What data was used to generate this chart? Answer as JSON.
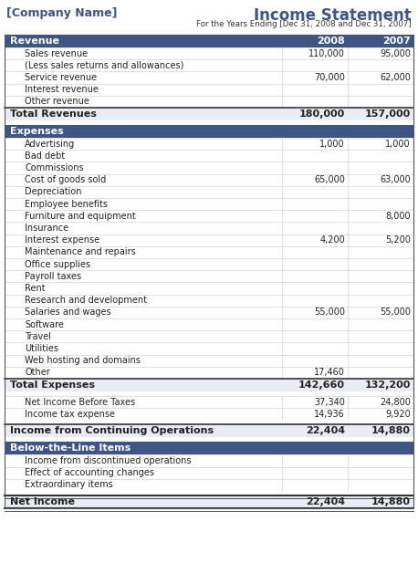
{
  "company_name": "[Company Name]",
  "title": "Income Statement",
  "subtitle": "For the Years Ending [Dec 31, 2008 and Dec 31, 2007]",
  "col_headers": [
    "2008",
    "2007"
  ],
  "header_bg": "#3F5585",
  "total_bg": "#EAECF4",
  "section_rows": [
    {
      "type": "section_header",
      "label": "Revenue",
      "show_cols": true
    },
    {
      "type": "item",
      "label": "Sales revenue",
      "v2008": "110,000",
      "v2007": "95,000"
    },
    {
      "type": "item",
      "label": "(Less sales returns and allowances)",
      "v2008": "",
      "v2007": ""
    },
    {
      "type": "item",
      "label": "Service revenue",
      "v2008": "70,000",
      "v2007": "62,000"
    },
    {
      "type": "item",
      "label": "Interest revenue",
      "v2008": "",
      "v2007": ""
    },
    {
      "type": "item",
      "label": "Other revenue",
      "v2008": "",
      "v2007": ""
    },
    {
      "type": "total",
      "label": "Total Revenues",
      "v2008": "180,000",
      "v2007": "157,000"
    },
    {
      "type": "gap"
    },
    {
      "type": "section_header",
      "label": "Expenses",
      "show_cols": false
    },
    {
      "type": "item",
      "label": "Advertising",
      "v2008": "1,000",
      "v2007": "1,000"
    },
    {
      "type": "item",
      "label": "Bad debt",
      "v2008": "",
      "v2007": ""
    },
    {
      "type": "item",
      "label": "Commissions",
      "v2008": "",
      "v2007": ""
    },
    {
      "type": "item",
      "label": "Cost of goods sold",
      "v2008": "65,000",
      "v2007": "63,000"
    },
    {
      "type": "item",
      "label": "Depreciation",
      "v2008": "",
      "v2007": ""
    },
    {
      "type": "item",
      "label": "Employee benefits",
      "v2008": "",
      "v2007": ""
    },
    {
      "type": "item",
      "label": "Furniture and equipment",
      "v2008": "",
      "v2007": "8,000"
    },
    {
      "type": "item",
      "label": "Insurance",
      "v2008": "",
      "v2007": ""
    },
    {
      "type": "item",
      "label": "Interest expense",
      "v2008": "4,200",
      "v2007": "5,200"
    },
    {
      "type": "item",
      "label": "Maintenance and repairs",
      "v2008": "",
      "v2007": ""
    },
    {
      "type": "item",
      "label": "Office supplies",
      "v2008": "",
      "v2007": ""
    },
    {
      "type": "item",
      "label": "Payroll taxes",
      "v2008": "",
      "v2007": ""
    },
    {
      "type": "item",
      "label": "Rent",
      "v2008": "",
      "v2007": ""
    },
    {
      "type": "item",
      "label": "Research and development",
      "v2008": "",
      "v2007": ""
    },
    {
      "type": "item",
      "label": "Salaries and wages",
      "v2008": "55,000",
      "v2007": "55,000"
    },
    {
      "type": "item",
      "label": "Software",
      "v2008": "",
      "v2007": ""
    },
    {
      "type": "item",
      "label": "Travel",
      "v2008": "",
      "v2007": ""
    },
    {
      "type": "item",
      "label": "Utilities",
      "v2008": "",
      "v2007": ""
    },
    {
      "type": "item",
      "label": "Web hosting and domains",
      "v2008": "",
      "v2007": ""
    },
    {
      "type": "item",
      "label": "Other",
      "v2008": "17,460",
      "v2007": ""
    },
    {
      "type": "total",
      "label": "Total Expenses",
      "v2008": "142,660",
      "v2007": "132,200"
    },
    {
      "type": "gap"
    },
    {
      "type": "item",
      "label": "Net Income Before Taxes",
      "v2008": "37,340",
      "v2007": "24,800"
    },
    {
      "type": "item",
      "label": "Income tax expense",
      "v2008": "14,936",
      "v2007": "9,920"
    },
    {
      "type": "gap"
    },
    {
      "type": "total2",
      "label": "Income from Continuing Operations",
      "v2008": "22,404",
      "v2007": "14,880"
    },
    {
      "type": "gap"
    },
    {
      "type": "section_header",
      "label": "Below-the-Line Items",
      "show_cols": false
    },
    {
      "type": "item",
      "label": "Income from discontinued operations",
      "v2008": "",
      "v2007": ""
    },
    {
      "type": "item",
      "label": "Effect of accounting changes",
      "v2008": "",
      "v2007": ""
    },
    {
      "type": "item",
      "label": "Extraordinary items",
      "v2008": "",
      "v2007": ""
    },
    {
      "type": "gap"
    },
    {
      "type": "net_income",
      "label": "Net Income",
      "v2008": "22,404",
      "v2007": "14,880"
    }
  ]
}
